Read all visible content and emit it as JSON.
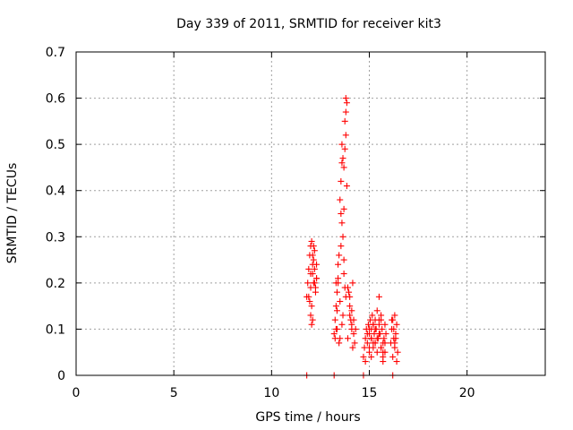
{
  "chart_data": {
    "type": "scatter",
    "title": "Day 339 of 2011, SRMTID for receiver kit3",
    "xlabel": "GPS time / hours",
    "ylabel": "SRMTID / TECUs",
    "xlim": [
      0,
      24
    ],
    "ylim": [
      0,
      0.7
    ],
    "xticks": [
      0,
      5,
      10,
      15,
      20
    ],
    "yticks": [
      0,
      0.1,
      0.2,
      0.3,
      0.4,
      0.5,
      0.6,
      0.7
    ],
    "xtick_labels": [
      "0",
      "5",
      "10",
      "15",
      "20"
    ],
    "ytick_labels": [
      "0",
      "0.1",
      "0.2",
      "0.3",
      "0.4",
      "0.5",
      "0.6",
      "0.7"
    ],
    "grid": true,
    "marker": "+",
    "color": "#ff0000",
    "series": [
      {
        "name": "SRMTID",
        "x": [
          11.8,
          11.85,
          11.9,
          11.95,
          12.0,
          12.0,
          12.05,
          12.1,
          12.1,
          12.15,
          12.2,
          12.2,
          12.25,
          12.3,
          12.3,
          11.95,
          12.0,
          12.05,
          12.1,
          12.15,
          11.9,
          12.0,
          12.1,
          12.2,
          12.25,
          12.3,
          12.05,
          12.15,
          13.2,
          13.25,
          13.3,
          13.35,
          13.4,
          13.3,
          13.35,
          13.4,
          13.45,
          13.5,
          13.5,
          13.55,
          13.6,
          13.6,
          13.65,
          13.7,
          13.7,
          13.55,
          13.6,
          13.65,
          13.7,
          13.75,
          13.75,
          13.8,
          13.8,
          13.8,
          13.85,
          13.85,
          13.7,
          13.75,
          13.8,
          13.65,
          13.6,
          13.5,
          13.55,
          13.45,
          13.4,
          13.35,
          13.3,
          13.25,
          13.9,
          13.95,
          14.0,
          14.05,
          14.1,
          14.15,
          13.9,
          14.0,
          14.1,
          14.2,
          14.25,
          14.3,
          14.0,
          14.1,
          14.15,
          14.2,
          14.7,
          14.75,
          14.8,
          14.85,
          14.9,
          14.95,
          15.0,
          15.0,
          15.05,
          15.1,
          15.1,
          15.15,
          15.2,
          15.2,
          15.25,
          15.3,
          15.3,
          15.35,
          15.4,
          15.4,
          15.45,
          15.5,
          15.5,
          15.55,
          15.6,
          15.6,
          15.65,
          15.7,
          15.7,
          15.75,
          15.8,
          15.8,
          15.85,
          14.8,
          14.9,
          15.0,
          15.1,
          15.2,
          15.3,
          15.4,
          15.5,
          15.6,
          15.7,
          15.8,
          15.0,
          15.1,
          15.2,
          15.3,
          15.5,
          15.6,
          15.7,
          16.1,
          16.15,
          16.2,
          16.25,
          16.3,
          16.35,
          16.4,
          16.45,
          16.2,
          16.3,
          16.4,
          16.25,
          16.35,
          16.15,
          16.3,
          11.8,
          13.2,
          14.7,
          16.2
        ],
        "y": [
          0.17,
          0.2,
          0.23,
          0.26,
          0.28,
          0.19,
          0.15,
          0.12,
          0.22,
          0.25,
          0.27,
          0.2,
          0.18,
          0.21,
          0.24,
          0.16,
          0.13,
          0.29,
          0.24,
          0.2,
          0.17,
          0.22,
          0.26,
          0.23,
          0.19,
          0.21,
          0.11,
          0.28,
          0.09,
          0.12,
          0.15,
          0.18,
          0.21,
          0.1,
          0.14,
          0.2,
          0.07,
          0.16,
          0.38,
          0.42,
          0.46,
          0.33,
          0.3,
          0.36,
          0.25,
          0.28,
          0.5,
          0.47,
          0.45,
          0.49,
          0.55,
          0.57,
          0.6,
          0.52,
          0.59,
          0.41,
          0.22,
          0.19,
          0.17,
          0.13,
          0.11,
          0.08,
          0.35,
          0.26,
          0.24,
          0.1,
          0.2,
          0.08,
          0.19,
          0.18,
          0.15,
          0.12,
          0.1,
          0.2,
          0.08,
          0.13,
          0.11,
          0.09,
          0.07,
          0.1,
          0.17,
          0.14,
          0.06,
          0.12,
          0.04,
          0.06,
          0.08,
          0.1,
          0.07,
          0.11,
          0.09,
          0.05,
          0.12,
          0.1,
          0.08,
          0.13,
          0.11,
          0.06,
          0.09,
          0.12,
          0.07,
          0.1,
          0.14,
          0.05,
          0.08,
          0.17,
          0.11,
          0.09,
          0.06,
          0.13,
          0.1,
          0.07,
          0.04,
          0.08,
          0.11,
          0.05,
          0.09,
          0.03,
          0.09,
          0.06,
          0.04,
          0.07,
          0.1,
          0.08,
          0.12,
          0.06,
          0.03,
          0.07,
          0.1,
          0.08,
          0.11,
          0.07,
          0.09,
          0.12,
          0.05,
          0.07,
          0.1,
          0.12,
          0.08,
          0.06,
          0.09,
          0.11,
          0.05,
          0.04,
          0.07,
          0.03,
          0.1,
          0.08,
          0.12,
          0.13,
          0.0,
          0.0,
          0.0,
          0.0
        ]
      }
    ]
  }
}
